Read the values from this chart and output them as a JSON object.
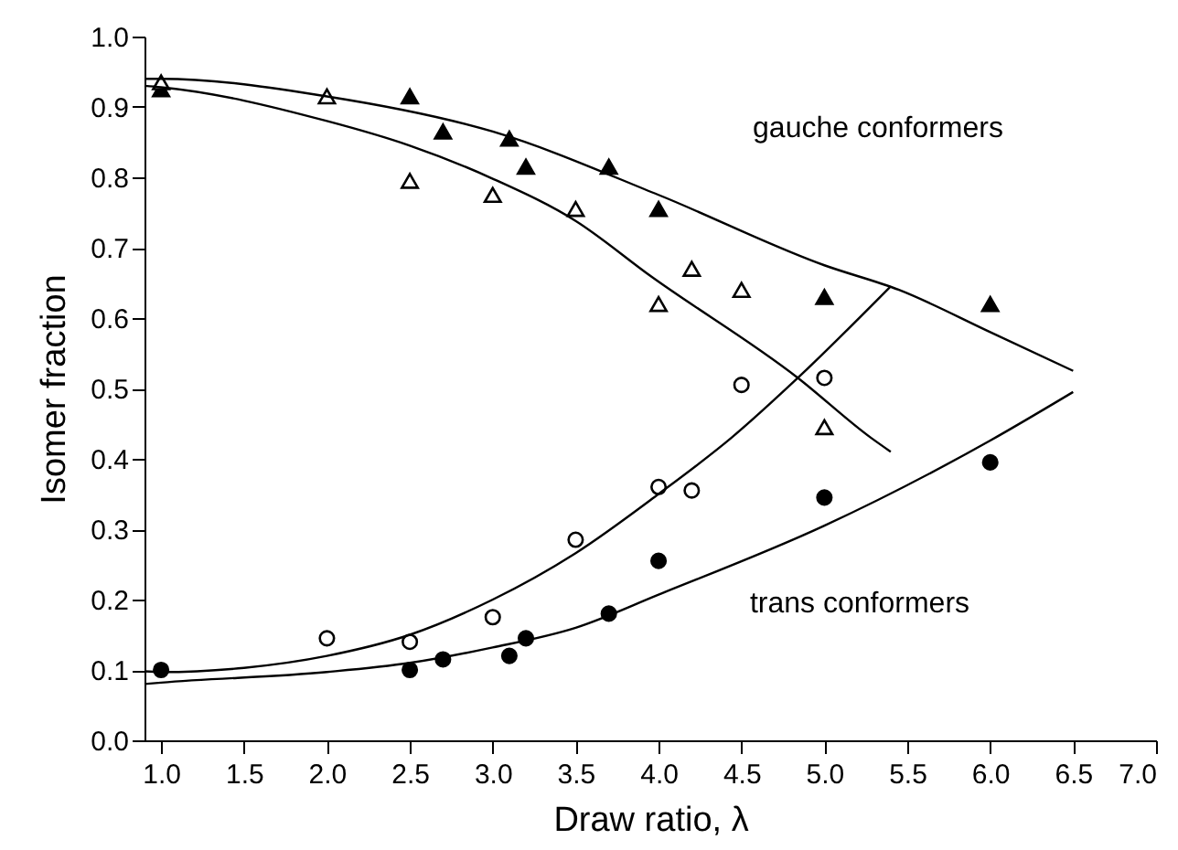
{
  "chart_data": {
    "type": "scatter",
    "xlabel": "Draw ratio, λ",
    "ylabel": "Isomer fraction",
    "xlim": [
      0.9,
      7.0
    ],
    "ylim": [
      0.0,
      1.0
    ],
    "xticks": [
      {
        "value": 1,
        "label": "1.0"
      },
      1.5,
      {
        "value": 2,
        "label": "2.0"
      },
      2.5,
      {
        "value": 3,
        "label": "3.0"
      },
      3.5,
      {
        "value": 4,
        "label": "4.0"
      },
      4.5,
      {
        "value": 5,
        "label": "5.0"
      },
      5.5,
      {
        "value": 6,
        "label": "6.0"
      },
      6.5,
      {
        "value": 7,
        "label": "7.0"
      }
    ],
    "yticks": [
      {
        "value": 0,
        "label": "0.0"
      },
      0.1,
      0.2,
      0.3,
      0.4,
      0.5,
      0.6,
      0.7,
      0.8,
      0.9,
      {
        "value": 1,
        "label": "1.0"
      }
    ],
    "grid": false,
    "series": [
      {
        "marker": "triangle",
        "color": "#000000",
        "x": [
          1.0,
          2.5,
          2.7,
          3.1,
          3.2,
          3.7,
          4.0,
          5.0,
          6.0
        ],
        "values": [
          0.925,
          0.915,
          0.865,
          0.855,
          0.815,
          0.815,
          0.755,
          0.63,
          0.62
        ]
      },
      {
        "marker": "triangle",
        "color": "#ffffff",
        "x": [
          1.0,
          2.0,
          2.5,
          3.0,
          3.5,
          4.0,
          4.2,
          4.5,
          5.0
        ],
        "values": [
          0.935,
          0.915,
          0.795,
          0.775,
          0.755,
          0.62,
          0.67,
          0.64,
          0.445
        ]
      },
      {
        "marker": "circle",
        "color": "#ffffff",
        "x": [
          2.0,
          2.5,
          3.0,
          3.5,
          4.0,
          4.2,
          4.5,
          5.0
        ],
        "values": [
          0.145,
          0.14,
          0.175,
          0.285,
          0.36,
          0.355,
          0.505,
          0.515
        ]
      },
      {
        "marker": "circle",
        "color": "#000000",
        "x": [
          1.0,
          2.5,
          2.7,
          3.1,
          3.2,
          3.7,
          4.0,
          5.0,
          6.0
        ],
        "values": [
          0.1,
          0.1,
          0.115,
          0.12,
          0.145,
          0.18,
          0.255,
          0.345,
          0.395
        ]
      },
      {
        "type": "line",
        "color": "#000000",
        "x": [
          0.9,
          1.0,
          2.0,
          3.0,
          4.0,
          5.0,
          5.45,
          6.0,
          6.5
        ],
        "values": [
          0.94,
          0.94,
          0.915,
          0.865,
          0.775,
          0.675,
          0.64,
          0.58,
          0.525
        ]
      },
      {
        "type": "line",
        "color": "#000000",
        "x": [
          0.9,
          1.0,
          2.0,
          2.5,
          3.0,
          3.5,
          3.95,
          4.84,
          5.28,
          5.4
        ],
        "values": [
          0.93,
          0.928,
          0.88,
          0.845,
          0.798,
          0.738,
          0.66,
          0.515,
          0.43,
          0.41
        ]
      },
      {
        "type": "line",
        "color": "#000000",
        "x": [
          0.9,
          1.0,
          1.5,
          2.0,
          2.5,
          3.0,
          3.5,
          4.0,
          4.44,
          4.84,
          5.4
        ],
        "values": [
          0.098,
          0.097,
          0.103,
          0.12,
          0.15,
          0.2,
          0.266,
          0.35,
          0.43,
          0.515,
          0.645
        ]
      },
      {
        "type": "line",
        "color": "#000000",
        "x": [
          0.9,
          1.0,
          2.0,
          2.5,
          3.0,
          3.5,
          4.0,
          5.0,
          6.0,
          6.5
        ],
        "values": [
          0.08,
          0.082,
          0.097,
          0.11,
          0.132,
          0.16,
          0.207,
          0.305,
          0.426,
          0.495
        ]
      }
    ],
    "annotations": [
      "gauche conformers",
      "trans conformers"
    ]
  }
}
